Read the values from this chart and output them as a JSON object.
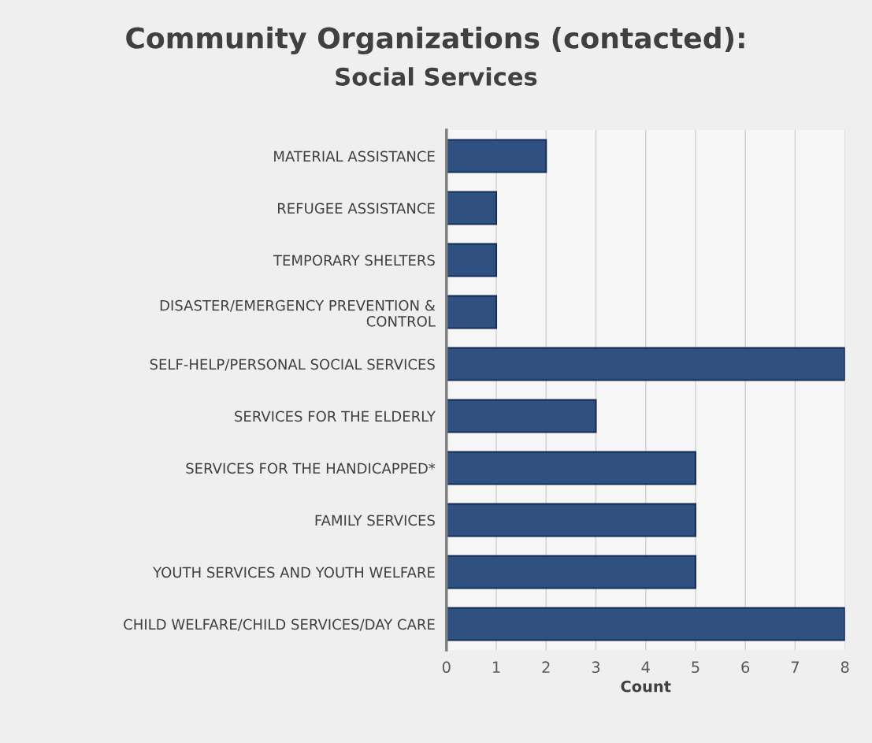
{
  "chart_data": {
    "type": "bar",
    "orientation": "horizontal",
    "title": "Community Organizations (contacted):",
    "subtitle": "Social Services",
    "xlabel": "Count",
    "categories": [
      "MATERIAL ASSISTANCE",
      "REFUGEE ASSISTANCE",
      "TEMPORARY SHELTERS",
      "DISASTER/EMERGENCY PREVENTION &\nCONTROL",
      "SELF-HELP/PERSONAL SOCIAL SERVICES",
      "SERVICES FOR THE ELDERLY",
      "SERVICES FOR THE HANDICAPPED*",
      "FAMILY SERVICES",
      "YOUTH SERVICES AND YOUTH WELFARE",
      "CHILD WELFARE/CHILD SERVICES/DAY CARE"
    ],
    "values": [
      2,
      1,
      1,
      1,
      8,
      3,
      5,
      5,
      5,
      8
    ],
    "color": "#2f5080",
    "xlim": [
      0,
      8
    ],
    "xticks": [
      0,
      1,
      2,
      3,
      4,
      5,
      6,
      7,
      8
    ],
    "grid": "x",
    "legend": false
  }
}
